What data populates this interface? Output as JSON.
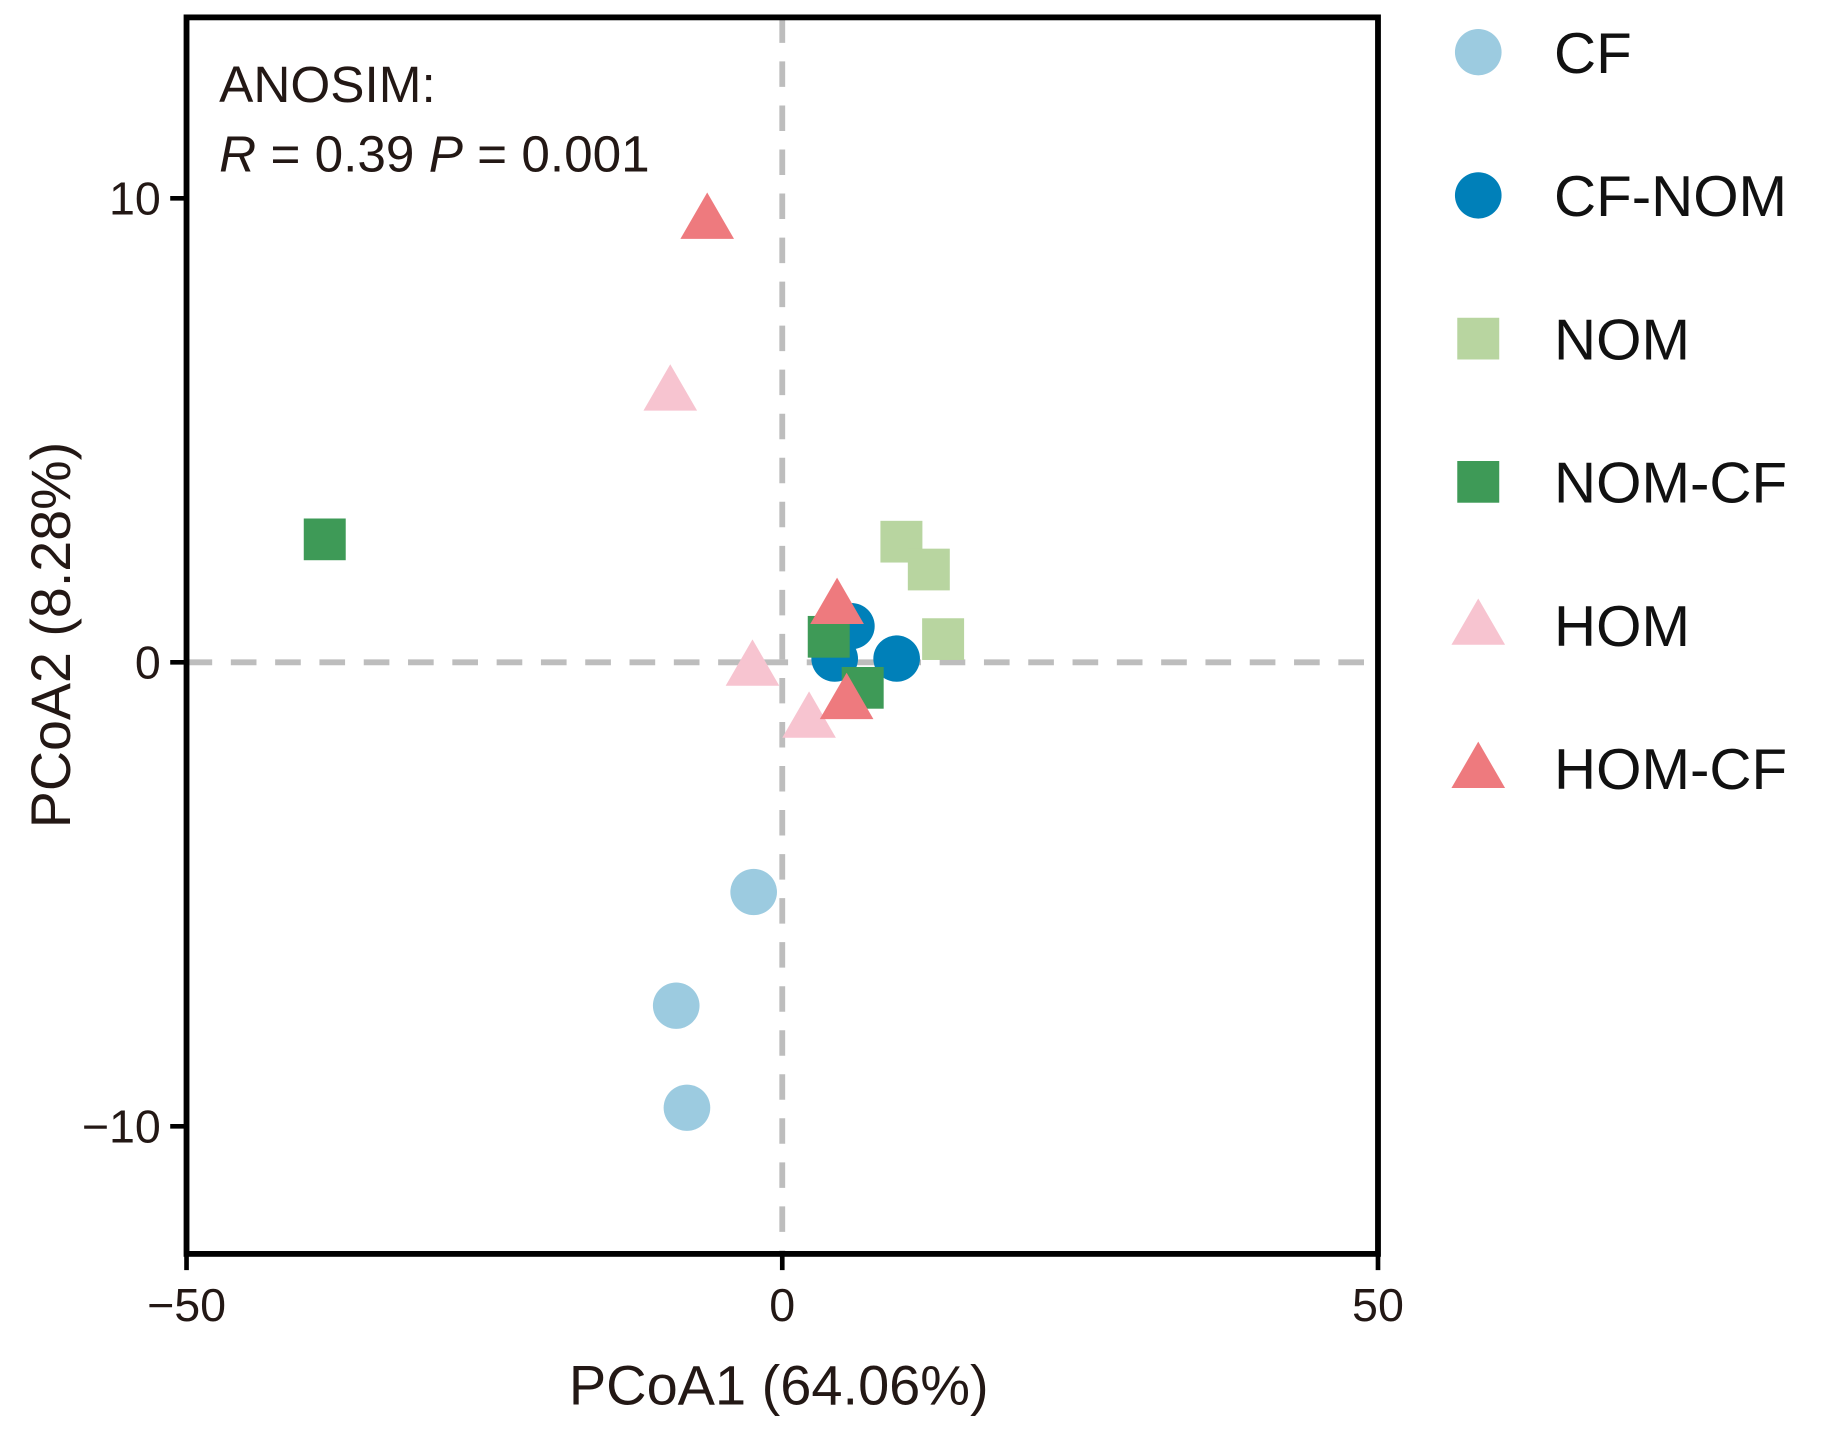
{
  "chart_data": {
    "type": "scatter",
    "xlabel": "PCoA1 (64.06%)",
    "ylabel": "PCoA2 (8.28%)",
    "xlim": [
      -50,
      50
    ],
    "ylim": [
      -12.75,
      13.9
    ],
    "xticks": [
      -50,
      0,
      50
    ],
    "xtick_labels": [
      "−50",
      "0",
      "50"
    ],
    "yticks": [
      -10,
      0,
      10
    ],
    "ytick_labels": [
      "−10",
      "0",
      "10"
    ],
    "grid": false,
    "reference_lines": {
      "x": 0,
      "y": 0,
      "style": "dashed"
    },
    "annotation": {
      "line1": "ANOSIM:",
      "r_label": "R",
      "r_text": " = 0.39 ",
      "p_label": "P",
      "p_text": " = 0.001"
    },
    "legend_position": "right",
    "series": [
      {
        "name": "CF",
        "marker": "circle",
        "color": "#9ccbe0",
        "points": [
          [
            -2.4,
            -4.95
          ],
          [
            -8.9,
            -7.4
          ],
          [
            -8.0,
            -9.6
          ]
        ]
      },
      {
        "name": "CF-NOM",
        "marker": "circle",
        "color": "#0080b9",
        "points": [
          [
            5.8,
            0.78
          ],
          [
            4.4,
            0.08
          ],
          [
            9.6,
            0.08
          ]
        ]
      },
      {
        "name": "NOM",
        "marker": "square",
        "color": "#b8d5a0",
        "points": [
          [
            10.0,
            2.6
          ],
          [
            12.3,
            2.0
          ],
          [
            13.5,
            0.5
          ]
        ]
      },
      {
        "name": "NOM-CF",
        "marker": "square",
        "color": "#3e9a57",
        "points": [
          [
            -38.4,
            2.65
          ],
          [
            3.9,
            0.55
          ],
          [
            6.75,
            -0.55
          ]
        ]
      },
      {
        "name": "HOM",
        "marker": "triangle",
        "color": "#f7c4d0",
        "points": [
          [
            -9.4,
            5.85
          ],
          [
            -2.5,
            -0.08
          ],
          [
            2.25,
            -1.2
          ]
        ]
      },
      {
        "name": "HOM-CF",
        "marker": "triangle",
        "color": "#ee7a7e",
        "points": [
          [
            -6.3,
            9.55
          ],
          [
            4.6,
            1.25
          ],
          [
            5.4,
            -0.8
          ]
        ]
      }
    ]
  }
}
